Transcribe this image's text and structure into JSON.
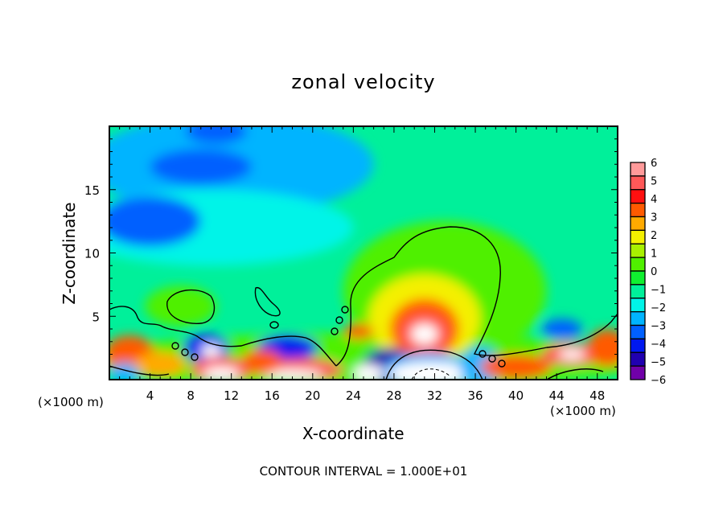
{
  "chart_data": {
    "type": "heatmap",
    "title": "zonal velocity",
    "xlabel": "X-coordinate",
    "ylabel": "Z-coordinate",
    "x_unit_label": "(×1000 m)",
    "x_unit_label_right": "(×1000 m)",
    "footer": "CONTOUR INTERVAL = 1.000E+01",
    "xlim": [
      0,
      50
    ],
    "ylim": [
      0,
      20
    ],
    "x_ticks": [
      4,
      8,
      12,
      16,
      20,
      24,
      28,
      32,
      36,
      40,
      44,
      48
    ],
    "y_ticks": [
      5,
      10,
      15
    ],
    "colorbar": {
      "labels": [
        "6",
        "5",
        "4",
        "3",
        "2",
        "1",
        "0",
        "−1",
        "−2",
        "−3",
        "−4",
        "−5",
        "−6"
      ],
      "range": [
        -6,
        6
      ],
      "colors_top_to_bottom": [
        "#ff9a9a",
        "#ff5858",
        "#ff1010",
        "#ff5a00",
        "#ffaa00",
        "#f4f000",
        "#a8f000",
        "#50f000",
        "#10f030",
        "#00f09a",
        "#00f4e8",
        "#00b4ff",
        "#0060ff",
        "#0018f0",
        "#2000b0",
        "#7000a8"
      ]
    },
    "background_value": -1.2,
    "features": [
      {
        "x": 12,
        "z": 17,
        "rx": 14,
        "rz": 4,
        "value": -2.3
      },
      {
        "x": 10,
        "z": 12,
        "rx": 14,
        "rz": 3,
        "value": -2.1
      },
      {
        "x": 4,
        "z": 12.5,
        "rx": 5,
        "rz": 2,
        "value": -3.2
      },
      {
        "x": 9,
        "z": 16.8,
        "rx": 5,
        "rz": 1.4,
        "value": -3.2
      },
      {
        "x": 10.5,
        "z": 19.6,
        "rx": 3,
        "rz": 1,
        "value": -3.4
      },
      {
        "x": 33,
        "z": 7,
        "rx": 10,
        "rz": 5.5,
        "value": 0.2
      },
      {
        "x": 7,
        "z": 5.8,
        "rx": 3.5,
        "rz": 1.6,
        "value": 0.3
      },
      {
        "x": 25,
        "z": 1.5,
        "rx": 28,
        "rz": 2.2,
        "value": 0.6
      },
      {
        "x": 31,
        "z": 4.8,
        "rx": 5.5,
        "rz": 3.5,
        "value": 1.8
      },
      {
        "x": 31,
        "z": 4,
        "rx": 3.4,
        "rz": 2.4,
        "value": 3.3
      },
      {
        "x": 31,
        "z": 3.6,
        "rx": 2.2,
        "rz": 1.5,
        "value": 4.8
      },
      {
        "x": 31,
        "z": 3.6,
        "rx": 1.3,
        "rz": 0.8,
        "value": 7
      },
      {
        "x": 2,
        "z": 2,
        "rx": 2.5,
        "rz": 1.5,
        "value": 3.5
      },
      {
        "x": 1.5,
        "z": 0.5,
        "rx": 1.5,
        "rz": 0.8,
        "value": -3
      },
      {
        "x": 9.5,
        "z": 2.5,
        "rx": 2.2,
        "rz": 1.1,
        "value": -4
      },
      {
        "x": 10,
        "z": 2.3,
        "rx": 1,
        "rz": 0.5,
        "value": 7
      },
      {
        "x": 11,
        "z": 0.8,
        "rx": 3,
        "rz": 1.0,
        "value": 5
      },
      {
        "x": 11,
        "z": 0.5,
        "rx": 1.8,
        "rz": 0.5,
        "value": 7
      },
      {
        "x": 17.5,
        "z": 2.5,
        "rx": 3,
        "rz": 1.0,
        "value": -4.5
      },
      {
        "x": 19,
        "z": 0.8,
        "rx": 4,
        "rz": 0.9,
        "value": 4.5
      },
      {
        "x": 18,
        "z": 0.4,
        "rx": 3,
        "rz": 0.4,
        "value": 7
      },
      {
        "x": 15,
        "z": 1.4,
        "rx": 2,
        "rz": 1,
        "value": 3.5
      },
      {
        "x": 5,
        "z": 1.2,
        "rx": 2.5,
        "rz": 1,
        "value": 2.5
      },
      {
        "x": 27.5,
        "z": 1,
        "rx": 2.5,
        "rz": 1.5,
        "value": -5
      },
      {
        "x": 25.5,
        "z": 0.5,
        "rx": 1.5,
        "rz": 0.7,
        "value": 7
      },
      {
        "x": 31.5,
        "z": 0.7,
        "rx": 4.5,
        "rz": 1.4,
        "value": -3
      },
      {
        "x": 31.5,
        "z": 0.5,
        "rx": 4,
        "rz": 0.9,
        "value": 7
      },
      {
        "x": 36.5,
        "z": 1,
        "rx": 2,
        "rz": 1.6,
        "value": -3
      },
      {
        "x": 40,
        "z": 1,
        "rx": 3.5,
        "rz": 1,
        "value": 3.5
      },
      {
        "x": 45.5,
        "z": 2,
        "rx": 3,
        "rz": 0.9,
        "value": 4.5
      },
      {
        "x": 45.5,
        "z": 2,
        "rx": 1.3,
        "rz": 0.4,
        "value": 7
      },
      {
        "x": 44.5,
        "z": 4,
        "rx": 2,
        "rz": 0.8,
        "value": -3.5
      },
      {
        "x": 49,
        "z": 2.5,
        "rx": 2,
        "rz": 1.5,
        "value": 3
      },
      {
        "x": 24.5,
        "z": 3.8,
        "rx": 1.5,
        "rz": 0.6,
        "value": 3
      }
    ]
  }
}
